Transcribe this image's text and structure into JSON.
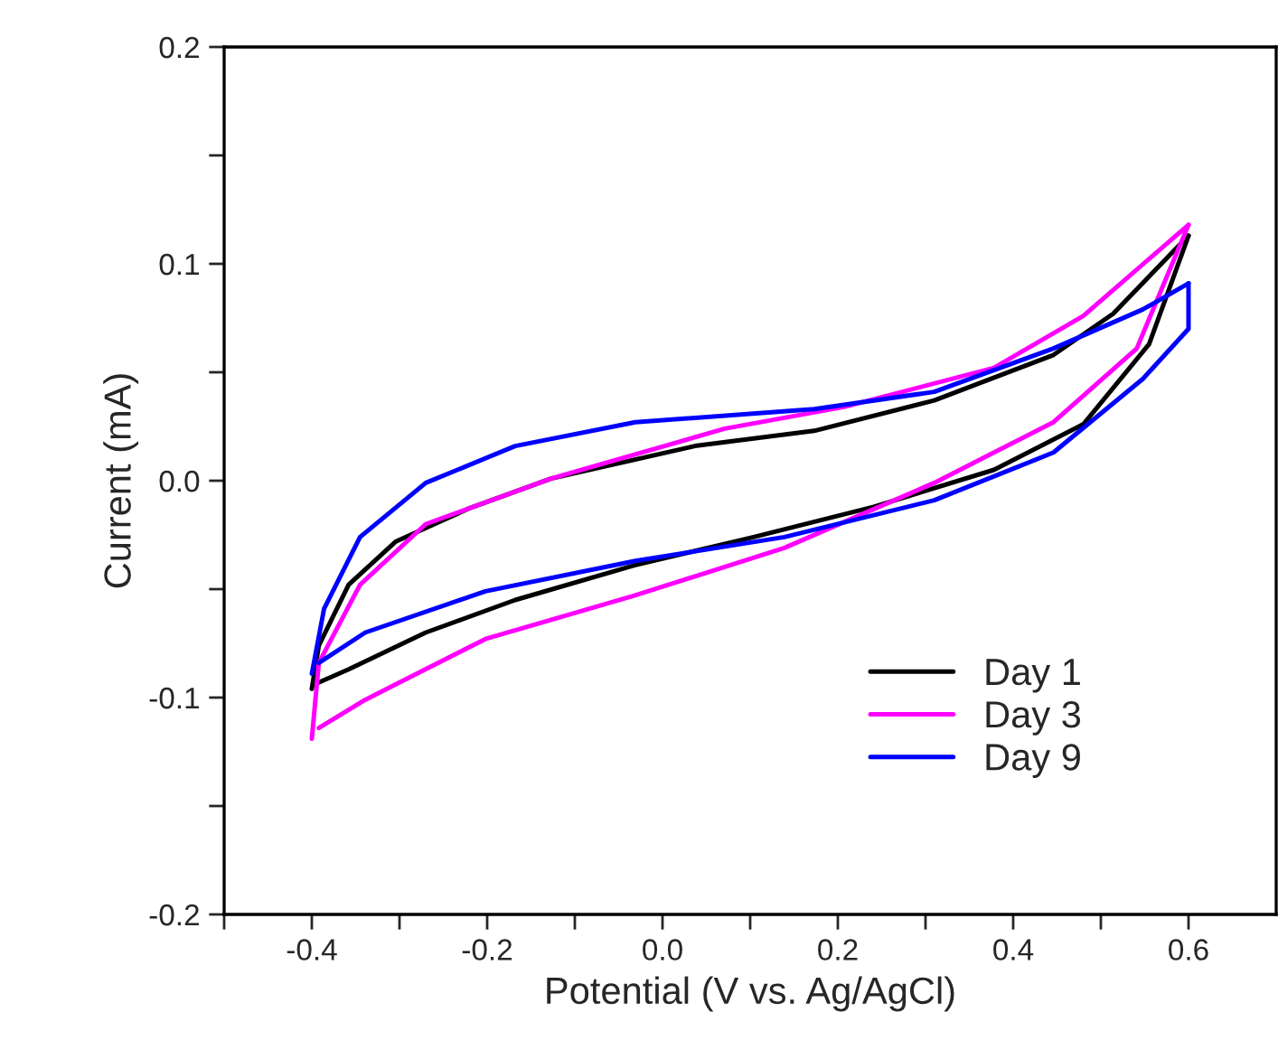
{
  "chart_data": {
    "type": "line",
    "xlabel": "Potential (V vs. Ag/AgCl)",
    "ylabel": "Current (mA)",
    "xlim": [
      -0.5,
      0.7
    ],
    "xticks": [
      {
        "value": -0.5,
        "label": null
      },
      -0.4,
      {
        "value": -0.3,
        "label": null
      },
      -0.2,
      {
        "value": -0.1,
        "label": null
      },
      {
        "value": 0.0,
        "label": "0.0"
      },
      {
        "value": 0.1,
        "label": null
      },
      0.2,
      {
        "value": 0.3,
        "label": null
      },
      0.4,
      {
        "value": 0.5,
        "label": null
      },
      0.6
    ],
    "ylim": [
      -0.2,
      0.2
    ],
    "yticks": [
      -0.2,
      {
        "value": -0.15,
        "label": null
      },
      -0.1,
      {
        "value": -0.05,
        "label": null
      },
      {
        "value": 0.0,
        "label": "0.0"
      },
      {
        "value": 0.05,
        "label": null
      },
      0.1,
      {
        "value": 0.15,
        "label": null
      },
      0.2
    ],
    "grid": false,
    "legend": "bottom right",
    "marker": "none",
    "line_style": "solid",
    "series": [
      {
        "name": "Day 1",
        "color": "#000000",
        "x": [
          -0.4,
          -0.392,
          -0.358,
          -0.304,
          -0.222,
          -0.127,
          0.037,
          0.173,
          0.31,
          0.446,
          0.514,
          0.6
        ],
        "values": [
          -0.096,
          -0.076,
          -0.048,
          -0.028,
          -0.013,
          0.001,
          0.016,
          0.023,
          0.037,
          0.058,
          0.077,
          0.113
        ]
      },
      {
        "color": "#000000",
        "x": [
          0.6,
          0.555,
          0.48,
          0.378,
          0.241,
          0.104,
          -0.032,
          -0.168,
          -0.27,
          -0.358,
          -0.392
        ],
        "values": [
          0.113,
          0.063,
          0.026,
          0.005,
          -0.012,
          -0.026,
          -0.039,
          -0.055,
          -0.07,
          -0.087,
          -0.093
        ]
      },
      {
        "name": "Day 3",
        "color": "#ff00ff",
        "x": [
          -0.4,
          -0.392,
          -0.345,
          -0.27,
          -0.127,
          0.071,
          0.207,
          0.378,
          0.48,
          0.6
        ],
        "values": [
          -0.119,
          -0.084,
          -0.048,
          -0.02,
          0.001,
          0.024,
          0.034,
          0.052,
          0.076,
          0.118
        ]
      },
      {
        "color": "#ff00ff",
        "x": [
          0.6,
          0.541,
          0.446,
          0.31,
          0.139,
          -0.032,
          -0.202,
          -0.339,
          -0.392
        ],
        "values": [
          0.118,
          0.061,
          0.027,
          -0.001,
          -0.031,
          -0.053,
          -0.073,
          -0.101,
          -0.114
        ]
      },
      {
        "name": "Day 9",
        "color": "#0000ff",
        "x": [
          -0.4,
          -0.386,
          -0.345,
          -0.27,
          -0.168,
          -0.031,
          0.173,
          0.31,
          0.446,
          0.548,
          0.6
        ],
        "values": [
          -0.089,
          -0.059,
          -0.026,
          -0.001,
          0.016,
          0.027,
          0.033,
          0.041,
          0.061,
          0.079,
          0.091
        ]
      },
      {
        "color": "#0000ff",
        "x": [
          0.6,
          0.6,
          0.548,
          0.446,
          0.31,
          0.139,
          -0.031,
          -0.202,
          -0.339,
          -0.392
        ],
        "values": [
          0.091,
          0.07,
          0.047,
          0.013,
          -0.009,
          -0.026,
          -0.037,
          -0.051,
          -0.07,
          -0.084
        ]
      }
    ]
  }
}
